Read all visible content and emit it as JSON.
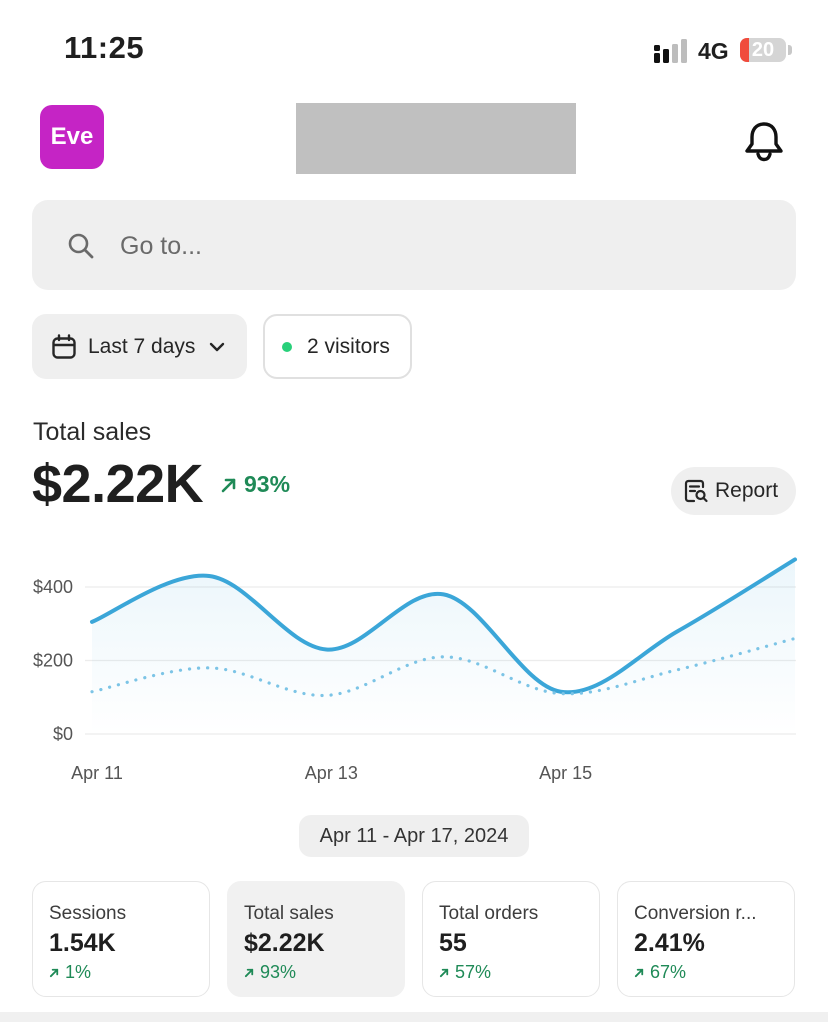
{
  "status_bar": {
    "time": "11:25",
    "network": "4G",
    "battery": "20",
    "battery_fraction": 0.2
  },
  "header": {
    "avatar_text": "Eve",
    "avatar_color": "#c524c5"
  },
  "search": {
    "placeholder": "Go to..."
  },
  "filters": {
    "date_range": "Last 7 days",
    "visitors": "2 visitors"
  },
  "summary": {
    "label": "Total sales",
    "value": "$2.22K",
    "change": "93%",
    "report_label": "Report"
  },
  "date_range_label": "Apr 11 - Apr 17, 2024",
  "colors": {
    "accent_line": "#3ba6d8",
    "positive": "#1f8a57",
    "live_dot": "#28d07a"
  },
  "chart_data": {
    "type": "line",
    "y_ticks": [
      "$400",
      "$200",
      "$0"
    ],
    "y_tick_values": [
      400,
      200,
      0
    ],
    "ylim": [
      0,
      400
    ],
    "x_tick_labels": [
      "Apr 11",
      "Apr 13",
      "Apr 15"
    ],
    "x": [
      "Apr 11",
      "Apr 12",
      "Apr 13",
      "Apr 14",
      "Apr 15",
      "Apr 16",
      "Apr 17"
    ],
    "series": [
      {
        "style": "solid",
        "values": [
          305,
          430,
          230,
          380,
          115,
          280,
          475
        ]
      },
      {
        "style": "dotted",
        "values": [
          115,
          180,
          105,
          210,
          110,
          175,
          260
        ]
      }
    ],
    "grid": true
  },
  "metrics": [
    {
      "label": "Sessions",
      "value": "1.54K",
      "change": "1%"
    },
    {
      "label": "Total sales",
      "value": "$2.22K",
      "change": "93%"
    },
    {
      "label": "Total orders",
      "value": "55",
      "change": "57%"
    },
    {
      "label": "Conversion r...",
      "value": "2.41%",
      "change": "67%"
    }
  ]
}
